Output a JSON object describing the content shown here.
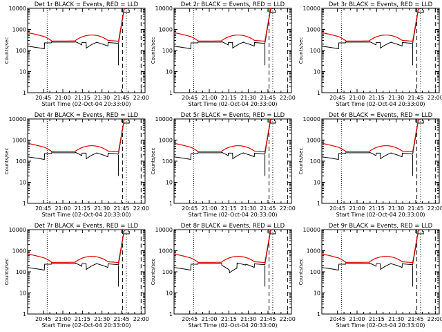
{
  "chart_data": [
    {
      "type": "line",
      "title": "Det 1r BLACK = Events, RED = LLD",
      "xlabel": "Start Time (02-Oct-04 20:33:00)",
      "ylabel": "Counts/sec",
      "yscale": "log",
      "ylim": [
        1,
        10000
      ],
      "xlim": [
        0,
        5400
      ],
      "x_ticks": [
        "20:45",
        "21:00",
        "21:15",
        "21:30",
        "21:45",
        "22:00"
      ],
      "variant": "A"
    },
    {
      "type": "line",
      "title": "Det 2r BLACK = Events, RED = LLD",
      "xlabel": "Start Time (02-Oct-04 20:33:00)",
      "ylabel": "Counts/sec",
      "yscale": "log",
      "ylim": [
        1,
        10000
      ],
      "xlim": [
        0,
        5400
      ],
      "x_ticks": [
        "20:45",
        "21:00",
        "21:15",
        "21:30",
        "21:45",
        "22:00"
      ],
      "variant": "A"
    },
    {
      "type": "line",
      "title": "Det 3r BLACK = Events, RED = LLD",
      "xlabel": "Start Time (02-Oct-04 20:33:00)",
      "ylabel": "Counts/sec",
      "yscale": "log",
      "ylim": [
        1,
        10000
      ],
      "xlim": [
        0,
        5400
      ],
      "x_ticks": [
        "20:45",
        "21:00",
        "21:15",
        "21:30",
        "21:45",
        "22:00"
      ],
      "variant": "A"
    },
    {
      "type": "line",
      "title": "Det 4r BLACK = Events, RED = LLD",
      "xlabel": "Start Time (02-Oct-04 20:33:00)",
      "ylabel": "Counts/sec",
      "yscale": "log",
      "ylim": [
        1,
        10000
      ],
      "xlim": [
        0,
        5400
      ],
      "x_ticks": [
        "20:45",
        "21:00",
        "21:15",
        "21:30",
        "21:45",
        "22:00"
      ],
      "variant": "A"
    },
    {
      "type": "line",
      "title": "Det 5r BLACK = Events, RED = LLD",
      "xlabel": "Start Time (02-Oct-04 20:33:00)",
      "ylabel": "Counts/sec",
      "yscale": "log",
      "ylim": [
        1,
        10000
      ],
      "xlim": [
        0,
        5400
      ],
      "x_ticks": [
        "20:45",
        "21:00",
        "21:15",
        "21:30",
        "21:45",
        "22:00"
      ],
      "variant": "A"
    },
    {
      "type": "line",
      "title": "Det 6r BLACK = Events, RED = LLD",
      "xlabel": "Start Time (02-Oct-04 20:33:00)",
      "ylabel": "Counts/sec",
      "yscale": "log",
      "ylim": [
        1,
        10000
      ],
      "xlim": [
        0,
        5400
      ],
      "x_ticks": [
        "20:45",
        "21:00",
        "21:15",
        "21:30",
        "21:45",
        "22:00"
      ],
      "variant": "A"
    },
    {
      "type": "line",
      "title": "Det 7r BLACK = Events, RED = LLD",
      "xlabel": "Start Time (02-Oct-04 20:33:00)",
      "ylabel": "Counts/sec",
      "yscale": "log",
      "ylim": [
        1,
        10000
      ],
      "xlim": [
        0,
        5400
      ],
      "x_ticks": [
        "20:45",
        "21:00",
        "21:15",
        "21:30",
        "21:45",
        "22:00"
      ],
      "variant": "A"
    },
    {
      "type": "line",
      "title": "Det 8r BLACK = Events, RED = LLD",
      "xlabel": "Start Time (02-Oct-04 20:33:00)",
      "ylabel": "Counts/sec",
      "yscale": "log",
      "ylim": [
        1,
        10000
      ],
      "xlim": [
        0,
        5400
      ],
      "x_ticks": [
        "20:45",
        "21:00",
        "21:15",
        "21:30",
        "21:45",
        "22:00"
      ],
      "variant": "B"
    },
    {
      "type": "line",
      "title": "Det 9r BLACK = Events, RED = LLD",
      "xlabel": "Start Time (02-Oct-04 20:33:00)",
      "ylabel": "Counts/sec",
      "yscale": "log",
      "ylim": [
        1,
        10000
      ],
      "xlim": [
        0,
        5400
      ],
      "x_ticks": [
        "20:45",
        "21:00",
        "21:15",
        "21:30",
        "21:45",
        "22:00"
      ],
      "variant": "A"
    }
  ],
  "y_tick_labels": [
    "10000",
    "1000",
    "100",
    "10",
    "1"
  ],
  "series_colors": {
    "events": "#000000",
    "lld": "#e00000"
  }
}
